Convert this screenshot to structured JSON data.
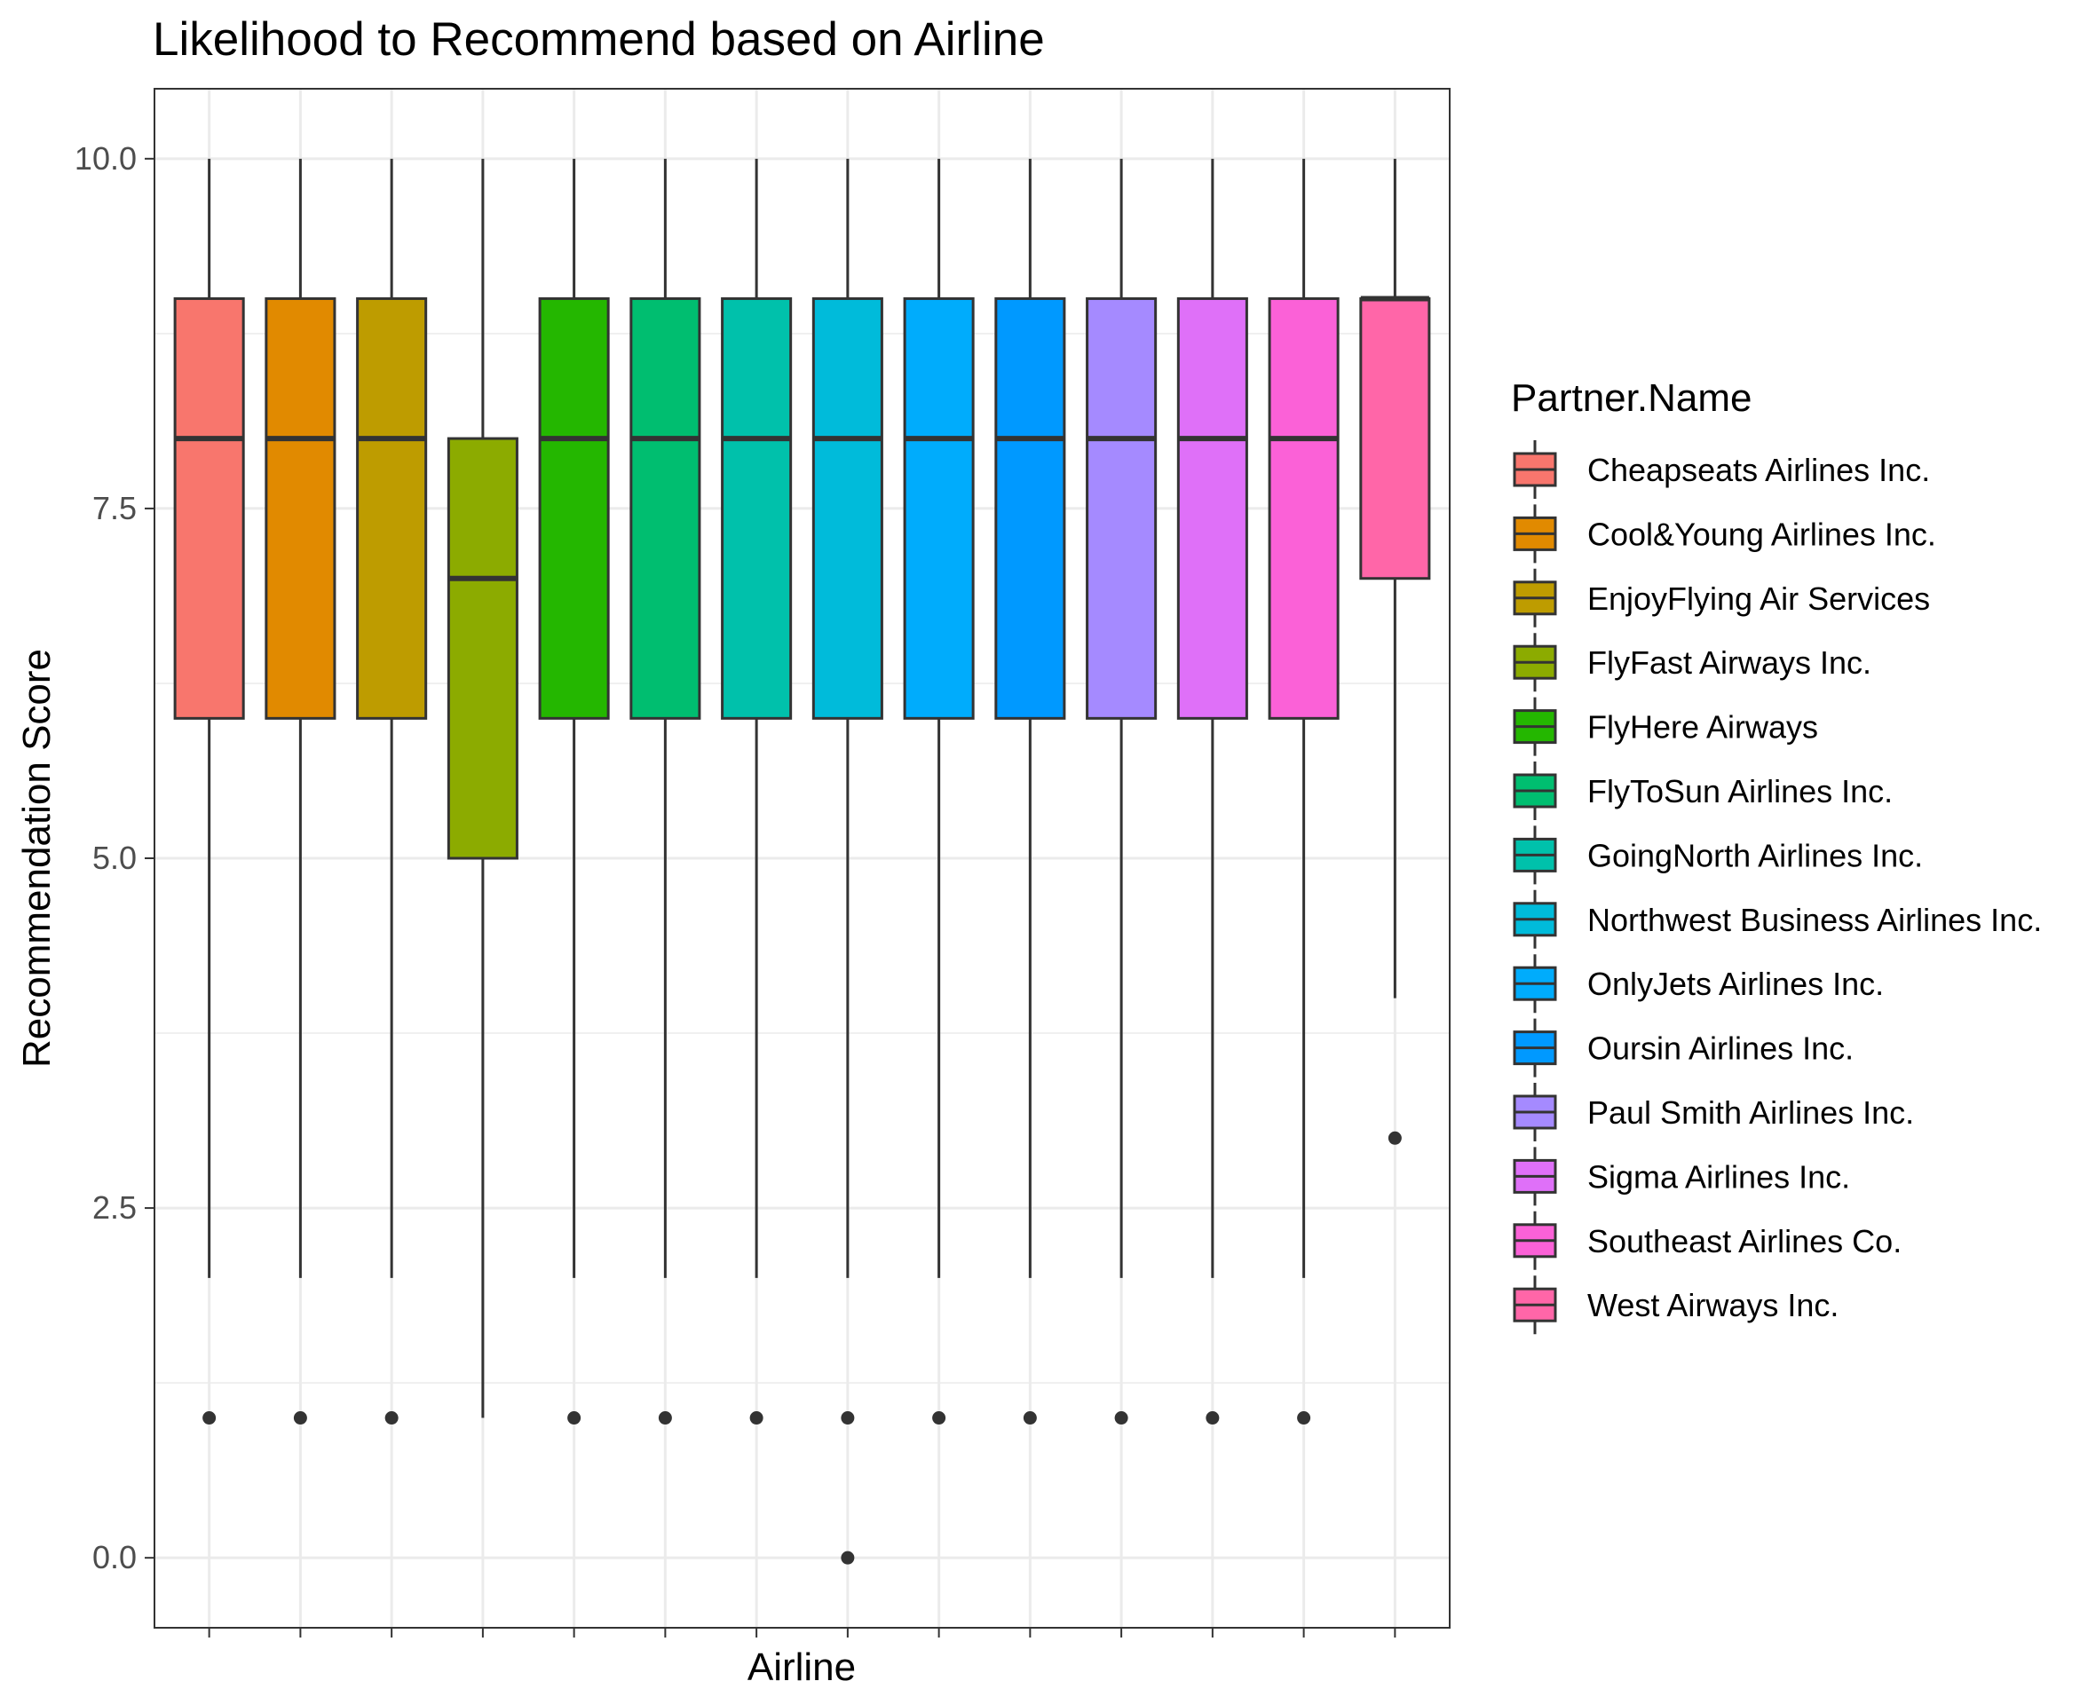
{
  "chart_data": {
    "type": "boxplot",
    "title": "Likelihood to Recommend based on Airline",
    "xlabel": "Airline",
    "ylabel": "Recommendation Score",
    "ylim": [
      -0.5,
      10.5
    ],
    "y_ticks": [
      "0.0",
      "2.5",
      "5.0",
      "7.5",
      "10.0"
    ],
    "y_tick_values": [
      0,
      2.5,
      5,
      7.5,
      10
    ],
    "grid": true,
    "legend": {
      "title": "Partner.Name",
      "position": "right"
    },
    "series": [
      {
        "name": "Cheapseats Airlines Inc.",
        "color": "#F8766D",
        "whisker_low": 2,
        "q1": 6,
        "median": 8,
        "q3": 9,
        "whisker_high": 10,
        "outliers": [
          1
        ]
      },
      {
        "name": "Cool&Young Airlines Inc.",
        "color": "#E18A00",
        "whisker_low": 2,
        "q1": 6,
        "median": 8,
        "q3": 9,
        "whisker_high": 10,
        "outliers": [
          1
        ]
      },
      {
        "name": "EnjoyFlying Air Services",
        "color": "#BE9C00",
        "whisker_low": 2,
        "q1": 6,
        "median": 8,
        "q3": 9,
        "whisker_high": 10,
        "outliers": [
          1
        ]
      },
      {
        "name": "FlyFast Airways Inc.",
        "color": "#8CAB00",
        "whisker_low": 1,
        "q1": 5,
        "median": 7,
        "q3": 8,
        "whisker_high": 10,
        "outliers": []
      },
      {
        "name": "FlyHere Airways",
        "color": "#24B700",
        "whisker_low": 2,
        "q1": 6,
        "median": 8,
        "q3": 9,
        "whisker_high": 10,
        "outliers": [
          1
        ]
      },
      {
        "name": "FlyToSun Airlines Inc.",
        "color": "#00BE70",
        "whisker_low": 2,
        "q1": 6,
        "median": 8,
        "q3": 9,
        "whisker_high": 10,
        "outliers": [
          1
        ]
      },
      {
        "name": "GoingNorth Airlines Inc.",
        "color": "#00C1AB",
        "whisker_low": 2,
        "q1": 6,
        "median": 8,
        "q3": 9,
        "whisker_high": 10,
        "outliers": [
          1
        ]
      },
      {
        "name": "Northwest Business Airlines Inc.",
        "color": "#00BBDA",
        "whisker_low": 2,
        "q1": 6,
        "median": 8,
        "q3": 9,
        "whisker_high": 10,
        "outliers": [
          1,
          0
        ]
      },
      {
        "name": "OnlyJets Airlines Inc.",
        "color": "#00ACFC",
        "whisker_low": 2,
        "q1": 6,
        "median": 8,
        "q3": 9,
        "whisker_high": 10,
        "outliers": [
          1
        ]
      },
      {
        "name": "Oursin Airlines Inc.",
        "color": "#0099FF",
        "whisker_low": 2,
        "q1": 6,
        "median": 8,
        "q3": 9,
        "whisker_high": 10,
        "outliers": [
          1
        ]
      },
      {
        "name": "Paul Smith Airlines Inc.",
        "color": "#A58AFF",
        "whisker_low": 2,
        "q1": 6,
        "median": 8,
        "q3": 9,
        "whisker_high": 10,
        "outliers": [
          1
        ]
      },
      {
        "name": "Sigma Airlines Inc.",
        "color": "#DF70F8",
        "whisker_low": 2,
        "q1": 6,
        "median": 8,
        "q3": 9,
        "whisker_high": 10,
        "outliers": [
          1
        ]
      },
      {
        "name": "Southeast Airlines Co.",
        "color": "#FB61D7",
        "whisker_low": 2,
        "q1": 6,
        "median": 8,
        "q3": 9,
        "whisker_high": 10,
        "outliers": [
          1
        ]
      },
      {
        "name": "West Airways Inc.",
        "color": "#FF66A8",
        "whisker_low": 4,
        "q1": 7,
        "median": 9,
        "q3": 9,
        "whisker_high": 10,
        "outliers": [
          3
        ]
      }
    ]
  }
}
